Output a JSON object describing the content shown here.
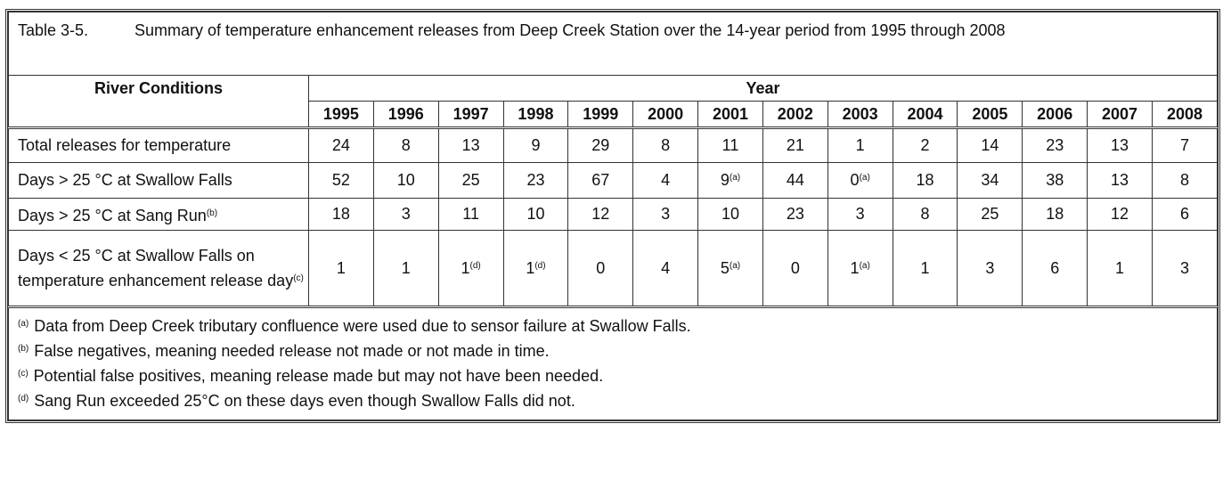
{
  "table": {
    "label": "Table 3-5.",
    "title": "Summary of temperature enhancement releases from Deep Creek Station over the 14-year period from 1995 through 2008",
    "row_header": "River Conditions",
    "group_header": "Year",
    "years": [
      "1995",
      "1996",
      "1997",
      "1998",
      "1999",
      "2000",
      "2001",
      "2002",
      "2003",
      "2004",
      "2005",
      "2006",
      "2007",
      "2008"
    ],
    "rows": [
      {
        "label": "Total releases for temperature",
        "label_sup": "",
        "cells": [
          {
            "v": "24"
          },
          {
            "v": "8"
          },
          {
            "v": "13"
          },
          {
            "v": "9"
          },
          {
            "v": "29"
          },
          {
            "v": "8"
          },
          {
            "v": "11"
          },
          {
            "v": "21"
          },
          {
            "v": "1"
          },
          {
            "v": "2"
          },
          {
            "v": "14"
          },
          {
            "v": "23"
          },
          {
            "v": "13"
          },
          {
            "v": "7"
          }
        ]
      },
      {
        "label": "Days > 25 °C at Swallow Falls",
        "label_sup": "",
        "cells": [
          {
            "v": "52"
          },
          {
            "v": "10"
          },
          {
            "v": "25"
          },
          {
            "v": "23"
          },
          {
            "v": "67"
          },
          {
            "v": "4"
          },
          {
            "v": "9",
            "sup": "(a)"
          },
          {
            "v": "44"
          },
          {
            "v": "0",
            "sup": "(a)"
          },
          {
            "v": "18"
          },
          {
            "v": "34"
          },
          {
            "v": "38"
          },
          {
            "v": "13"
          },
          {
            "v": "8"
          }
        ]
      },
      {
        "label": "Days > 25 °C at Sang Run",
        "label_sup": "(b)",
        "cells": [
          {
            "v": "18"
          },
          {
            "v": "3"
          },
          {
            "v": "11"
          },
          {
            "v": "10"
          },
          {
            "v": "12"
          },
          {
            "v": "3"
          },
          {
            "v": "10"
          },
          {
            "v": "23"
          },
          {
            "v": "3"
          },
          {
            "v": "8"
          },
          {
            "v": "25"
          },
          {
            "v": "18"
          },
          {
            "v": "12"
          },
          {
            "v": "6"
          }
        ]
      },
      {
        "label": "Days < 25 °C at Swallow Falls on temperature enhancement release day",
        "label_sup": "(c)",
        "cells": [
          {
            "v": "1"
          },
          {
            "v": "1"
          },
          {
            "v": "1",
            "sup": "(d)"
          },
          {
            "v": "1",
            "sup": "(d)"
          },
          {
            "v": "0"
          },
          {
            "v": "4"
          },
          {
            "v": "5",
            "sup": "(a)"
          },
          {
            "v": "0"
          },
          {
            "v": "1",
            "sup": "(a)"
          },
          {
            "v": "1"
          },
          {
            "v": "3"
          },
          {
            "v": "6"
          },
          {
            "v": "1"
          },
          {
            "v": "3"
          }
        ]
      }
    ],
    "footnotes": [
      {
        "mark": "(a)",
        "text": "Data from Deep Creek tributary confluence were used due to sensor failure at Swallow Falls."
      },
      {
        "mark": "(b)",
        "text": "False negatives, meaning needed release not made or not made in time."
      },
      {
        "mark": "(c)",
        "text": "Potential false positives, meaning release made but may not have been needed."
      },
      {
        "mark": "(d)",
        "text": "Sang Run exceeded 25°C on these days even though Swallow Falls did not."
      }
    ]
  }
}
